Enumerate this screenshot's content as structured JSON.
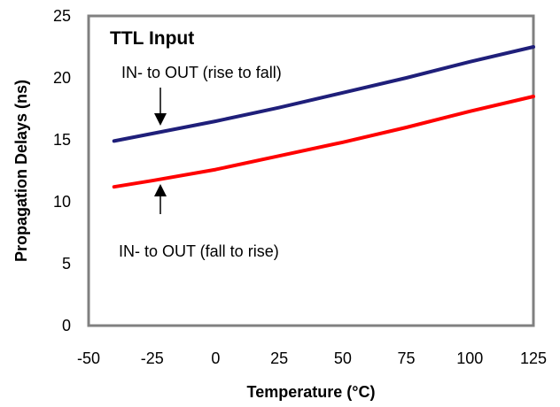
{
  "chart_data": {
    "type": "line",
    "title": "TTL Input",
    "xlabel": "Temperature (°C)",
    "ylabel": "Propagation Delays (ns)",
    "xlim": [
      -50,
      125
    ],
    "ylim": [
      0,
      25
    ],
    "xticks": [
      "-50",
      "-25",
      "0",
      "25",
      "50",
      "75",
      "100",
      "125"
    ],
    "yticks": [
      "0",
      "5",
      "10",
      "15",
      "20",
      "25"
    ],
    "grid": false,
    "legend": "none",
    "series": [
      {
        "name": "IN- to OUT (rise to fall)",
        "color": "#1f1f7a",
        "x": [
          -40,
          -25,
          0,
          25,
          50,
          75,
          100,
          125
        ],
        "y": [
          14.9,
          15.5,
          16.5,
          17.6,
          18.8,
          20.0,
          21.3,
          22.5
        ]
      },
      {
        "name": "IN- to OUT (fall to rise)",
        "color": "#ff0000",
        "x": [
          -40,
          -25,
          0,
          25,
          50,
          75,
          100,
          125
        ],
        "y": [
          11.2,
          11.7,
          12.6,
          13.7,
          14.8,
          16.0,
          17.3,
          18.5
        ]
      }
    ],
    "annotations": {
      "rise_to_fall": "IN- to OUT (rise to fall)",
      "fall_to_rise": "IN- to OUT (fall to rise)"
    }
  }
}
